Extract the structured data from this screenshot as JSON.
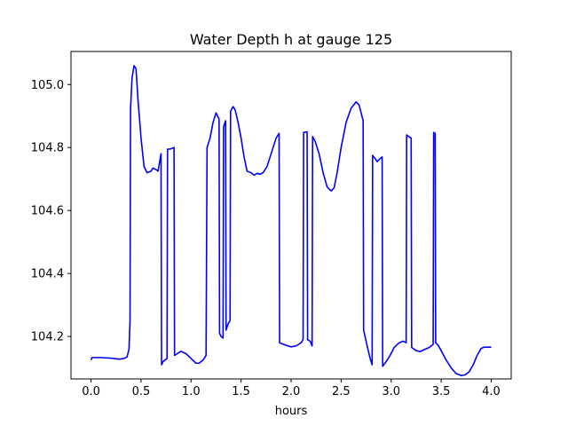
{
  "chart_data": {
    "type": "line",
    "title": "Water Depth h at gauge 125",
    "xlabel": "hours",
    "ylabel": "",
    "xlim": [
      -0.2,
      4.2
    ],
    "ylim": [
      104.065,
      105.105
    ],
    "xticks": [
      0.0,
      0.5,
      1.0,
      1.5,
      2.0,
      2.5,
      3.0,
      3.5,
      4.0
    ],
    "xtick_labels": [
      "0.0",
      "0.5",
      "1.0",
      "1.5",
      "2.0",
      "2.5",
      "3.0",
      "3.5",
      "4.0"
    ],
    "yticks": [
      104.2,
      104.4,
      104.6,
      104.8,
      105.0
    ],
    "ytick_labels": [
      "104.2",
      "104.4",
      "104.6",
      "104.8",
      "105.0"
    ],
    "grid": false,
    "series": [
      {
        "color": "#0000ff",
        "points": [
          [
            0.0,
            104.125
          ],
          [
            0.01,
            104.133
          ],
          [
            0.1,
            104.133
          ],
          [
            0.2,
            104.131
          ],
          [
            0.28,
            104.128
          ],
          [
            0.33,
            104.13
          ],
          [
            0.36,
            104.135
          ],
          [
            0.38,
            104.16
          ],
          [
            0.39,
            104.25
          ],
          [
            0.395,
            104.92
          ],
          [
            0.41,
            105.02
          ],
          [
            0.43,
            105.06
          ],
          [
            0.45,
            105.05
          ],
          [
            0.47,
            104.95
          ],
          [
            0.5,
            104.83
          ],
          [
            0.53,
            104.74
          ],
          [
            0.56,
            104.72
          ],
          [
            0.6,
            104.725
          ],
          [
            0.62,
            104.735
          ],
          [
            0.65,
            104.73
          ],
          [
            0.67,
            104.725
          ],
          [
            0.7,
            104.78
          ],
          [
            0.705,
            104.11
          ],
          [
            0.72,
            104.12
          ],
          [
            0.76,
            104.13
          ],
          [
            0.765,
            104.795
          ],
          [
            0.79,
            104.795
          ],
          [
            0.83,
            104.8
          ],
          [
            0.835,
            104.14
          ],
          [
            0.86,
            104.145
          ],
          [
            0.9,
            104.153
          ],
          [
            0.95,
            104.145
          ],
          [
            1.0,
            104.13
          ],
          [
            1.05,
            104.115
          ],
          [
            1.08,
            104.115
          ],
          [
            1.12,
            104.125
          ],
          [
            1.15,
            104.14
          ],
          [
            1.16,
            104.8
          ],
          [
            1.19,
            104.83
          ],
          [
            1.22,
            104.88
          ],
          [
            1.25,
            104.91
          ],
          [
            1.28,
            104.89
          ],
          [
            1.285,
            104.21
          ],
          [
            1.3,
            104.2
          ],
          [
            1.32,
            104.195
          ],
          [
            1.325,
            104.865
          ],
          [
            1.345,
            104.885
          ],
          [
            1.35,
            104.22
          ],
          [
            1.37,
            104.24
          ],
          [
            1.39,
            104.25
          ],
          [
            1.395,
            104.915
          ],
          [
            1.42,
            104.93
          ],
          [
            1.44,
            104.92
          ],
          [
            1.47,
            104.88
          ],
          [
            1.5,
            104.83
          ],
          [
            1.53,
            104.77
          ],
          [
            1.56,
            104.725
          ],
          [
            1.6,
            104.72
          ],
          [
            1.63,
            104.712
          ],
          [
            1.66,
            104.718
          ],
          [
            1.69,
            104.715
          ],
          [
            1.72,
            104.72
          ],
          [
            1.76,
            104.74
          ],
          [
            1.8,
            104.78
          ],
          [
            1.85,
            104.83
          ],
          [
            1.88,
            104.845
          ],
          [
            1.885,
            104.18
          ],
          [
            1.95,
            104.172
          ],
          [
            2.0,
            104.167
          ],
          [
            2.05,
            104.17
          ],
          [
            2.1,
            104.18
          ],
          [
            2.12,
            104.19
          ],
          [
            2.125,
            104.848
          ],
          [
            2.16,
            104.85
          ],
          [
            2.165,
            104.19
          ],
          [
            2.19,
            104.185
          ],
          [
            2.21,
            104.17
          ],
          [
            2.215,
            104.835
          ],
          [
            2.24,
            104.82
          ],
          [
            2.28,
            104.78
          ],
          [
            2.32,
            104.72
          ],
          [
            2.36,
            104.675
          ],
          [
            2.4,
            104.662
          ],
          [
            2.43,
            104.672
          ],
          [
            2.46,
            104.72
          ],
          [
            2.5,
            104.8
          ],
          [
            2.55,
            104.88
          ],
          [
            2.6,
            104.925
          ],
          [
            2.65,
            104.945
          ],
          [
            2.68,
            104.935
          ],
          [
            2.72,
            104.885
          ],
          [
            2.725,
            104.22
          ],
          [
            2.76,
            104.17
          ],
          [
            2.79,
            104.13
          ],
          [
            2.81,
            104.11
          ],
          [
            2.815,
            104.775
          ],
          [
            2.84,
            104.765
          ],
          [
            2.86,
            104.755
          ],
          [
            2.89,
            104.765
          ],
          [
            2.91,
            104.77
          ],
          [
            2.915,
            104.105
          ],
          [
            2.95,
            104.12
          ],
          [
            2.99,
            104.14
          ],
          [
            3.03,
            104.165
          ],
          [
            3.08,
            104.18
          ],
          [
            3.12,
            104.185
          ],
          [
            3.15,
            104.18
          ],
          [
            3.155,
            104.84
          ],
          [
            3.175,
            104.835
          ],
          [
            3.2,
            104.83
          ],
          [
            3.205,
            104.165
          ],
          [
            3.25,
            104.155
          ],
          [
            3.29,
            104.152
          ],
          [
            3.33,
            104.158
          ],
          [
            3.38,
            104.165
          ],
          [
            3.4,
            104.17
          ],
          [
            3.42,
            104.175
          ],
          [
            3.425,
            104.848
          ],
          [
            3.44,
            104.845
          ],
          [
            3.445,
            104.18
          ],
          [
            3.47,
            104.172
          ],
          [
            3.5,
            104.155
          ],
          [
            3.55,
            104.125
          ],
          [
            3.6,
            104.1
          ],
          [
            3.65,
            104.082
          ],
          [
            3.7,
            104.076
          ],
          [
            3.74,
            104.078
          ],
          [
            3.78,
            104.088
          ],
          [
            3.82,
            104.11
          ],
          [
            3.86,
            104.14
          ],
          [
            3.9,
            104.162
          ],
          [
            3.93,
            104.166
          ],
          [
            4.0,
            104.166
          ]
        ]
      }
    ]
  }
}
